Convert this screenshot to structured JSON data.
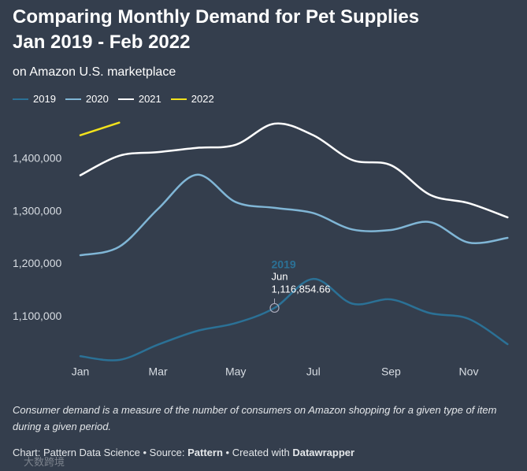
{
  "chart_data": {
    "type": "line",
    "title": [
      "Comparing Monthly Demand for Pet Supplies",
      "Jan 2019 - Feb 2022"
    ],
    "subtitle": "on Amazon U.S. marketplace",
    "categories": [
      "Jan",
      null,
      "Mar",
      null,
      "May",
      null,
      "Jul",
      null,
      "Sep",
      null,
      "Nov",
      null
    ],
    "series": [
      {
        "name": "2019",
        "color": "#2b7196",
        "values": [
          1025000,
          1018000,
          1047000,
          1073000,
          1088000,
          1116854.66,
          1172000,
          1125000,
          1133000,
          1107000,
          1096000,
          1048000
        ],
        "value_labels": [
          null,
          null,
          null,
          null,
          null,
          "1,116,854.66",
          null,
          null,
          null,
          null,
          null,
          null
        ]
      },
      {
        "name": "2020",
        "color": "#80b6d6",
        "values": [
          1217000,
          1233000,
          1305000,
          1370000,
          1318000,
          1307000,
          1297000,
          1266000,
          1265000,
          1280000,
          1241000,
          1250000
        ]
      },
      {
        "name": "2021",
        "color": "#ffffff",
        "values": [
          1369000,
          1406000,
          1413000,
          1421000,
          1427000,
          1467000,
          1445000,
          1398000,
          1388000,
          1332000,
          1316000,
          1289000
        ]
      },
      {
        "name": "2022",
        "color": "#f2e21c",
        "values": [
          1445000,
          1469000,
          null,
          null,
          null,
          null,
          null,
          null,
          null,
          null,
          null,
          null
        ]
      }
    ],
    "tooltip_label": "Jun",
    "ylim": [
      1000000,
      1500000
    ],
    "yticks": [
      {
        "value": 1100000,
        "label": "1,100,000"
      },
      {
        "value": 1200000,
        "label": "1,200,000"
      },
      {
        "value": 1300000,
        "label": "1,300,000"
      },
      {
        "value": 1400000,
        "label": "1,400,000"
      }
    ],
    "grid": false,
    "note": "Consumer demand is a measure of the number of consumers on Amazon shopping for a given type of item during a given period.",
    "footer": {
      "chart": "Chart: Pattern Data Science",
      "separator": "•",
      "source_label": "Source:",
      "source": "Pattern",
      "created_label": "Created with",
      "created": "Datawrapper"
    },
    "watermark": "大数跨境"
  }
}
